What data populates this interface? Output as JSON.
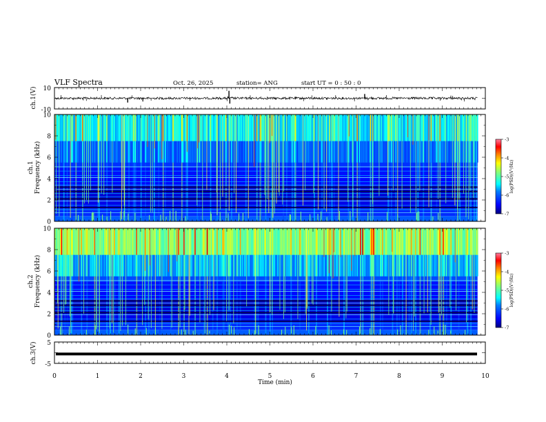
{
  "header": {
    "title": "VLF Spectra",
    "date": "Oct. 26, 2025",
    "station": "station= ANG",
    "start_ut": "start UT =  0 : 50 : 0"
  },
  "chart_data": [
    {
      "type": "line",
      "name": "ch1-waveform",
      "ylabel": "ch.1(V)",
      "ylim": [
        -10,
        10
      ],
      "y_ticks": [
        "10",
        "-10"
      ],
      "xlim": [
        0,
        10
      ],
      "baseline": 0,
      "spikes": [
        {
          "x": 1.7,
          "y": -4
        },
        {
          "x": 4.05,
          "y": 7
        },
        {
          "x": 4.07,
          "y": -5
        },
        {
          "x": 7.2,
          "y": 4
        }
      ]
    },
    {
      "type": "heatmap",
      "name": "ch1-spectrogram",
      "ylabel": "ch.1\nFrequency (kHz)",
      "ylim": [
        0,
        10
      ],
      "xlim": [
        0,
        10
      ],
      "y_ticks": [
        "0",
        "2",
        "4",
        "6",
        "8",
        "10"
      ],
      "data_end_min": 9.82,
      "colorbar": {
        "label": "log(PSD)(V²/Hz)",
        "range": [
          -7,
          -3
        ],
        "ticks": [
          "-3",
          "-4",
          "-5",
          "-6",
          "-7"
        ]
      }
    },
    {
      "type": "heatmap",
      "name": "ch2-spectrogram",
      "ylabel": "ch.2\nFrequency (kHz)",
      "ylim": [
        0,
        10
      ],
      "xlim": [
        0,
        10
      ],
      "y_ticks": [
        "0",
        "2",
        "4",
        "6",
        "8",
        "10"
      ],
      "data_end_min": 9.82,
      "colorbar": {
        "label": "log(PSD)(V²/Hz)",
        "range": [
          -7,
          -3
        ],
        "ticks": [
          "-3",
          "-4",
          "-5",
          "-6",
          "-7"
        ]
      }
    },
    {
      "type": "line",
      "name": "ch3-waveform",
      "ylabel": "ch.3(V)",
      "ylim": [
        -5,
        5
      ],
      "y_ticks": [
        "5",
        "-5"
      ],
      "xlim": [
        0,
        10
      ],
      "baseline": -0.6
    }
  ],
  "xaxis": {
    "label": "Time (min)",
    "ticks": [
      "0",
      "1",
      "2",
      "3",
      "4",
      "5",
      "6",
      "7",
      "8",
      "9",
      "10"
    ]
  },
  "colors": {
    "cmap": [
      "#00007f",
      "#0000ff",
      "#007fff",
      "#00ffff",
      "#7fff7f",
      "#ffff00",
      "#ff7f00",
      "#ff0000",
      "#7f0000"
    ]
  }
}
